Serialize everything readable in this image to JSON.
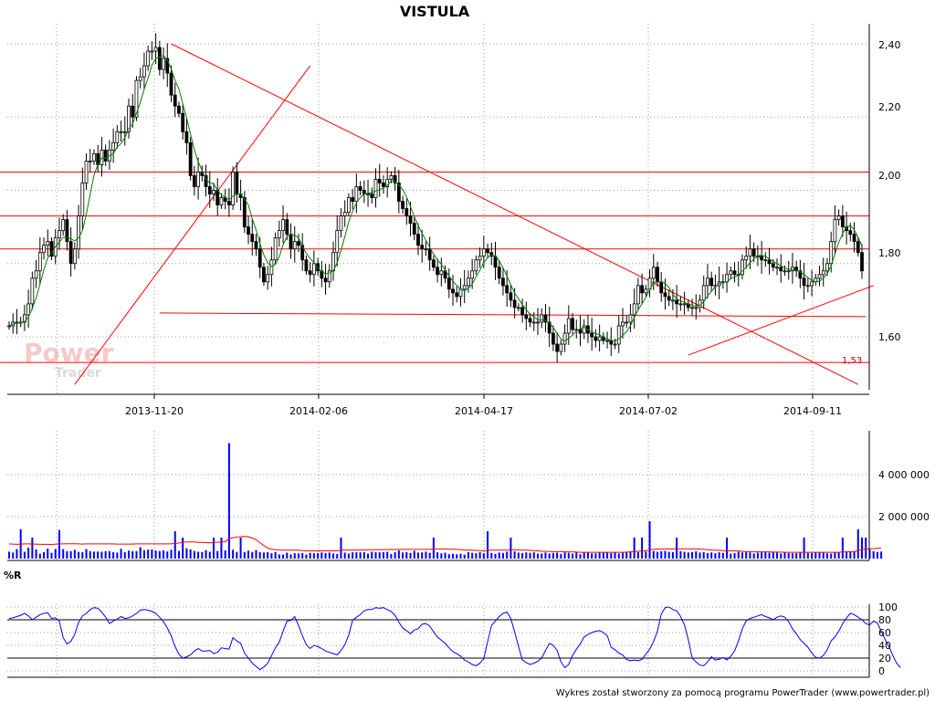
{
  "chart_data": [
    {
      "type": "candlestick",
      "title": "VISTULA",
      "x_ticks": [
        "2013-11-20",
        "2014-02-06",
        "2014-04-17",
        "2014-07-02",
        "2014-09-11"
      ],
      "y_ticks": [
        "1,60",
        "1,80",
        "2,00",
        "2,20",
        "2,40"
      ],
      "ylim": [
        1.46,
        2.46
      ],
      "grid": true,
      "close": [
        1.63,
        1.64,
        1.64,
        1.64,
        1.66,
        1.69,
        1.76,
        1.78,
        1.83,
        1.85,
        1.86,
        1.82,
        1.87,
        1.89,
        1.92,
        1.86,
        1.8,
        1.84,
        1.93,
        2.02,
        2.08,
        2.08,
        2.1,
        2.07,
        2.11,
        2.08,
        2.11,
        2.13,
        2.16,
        2.16,
        2.16,
        2.23,
        2.2,
        2.3,
        2.31,
        2.34,
        2.38,
        2.38,
        2.39,
        2.33,
        2.36,
        2.32,
        2.26,
        2.23,
        2.21,
        2.16,
        2.13,
        2.04,
        2.01,
        2.05,
        2.04,
        2.01,
        1.99,
        2.0,
        1.96,
        1.98,
        1.97,
        1.96,
        2.05,
        1.99,
        1.98,
        1.9,
        1.88,
        1.86,
        1.84,
        1.79,
        1.75,
        1.77,
        1.81,
        1.87,
        1.89,
        1.92,
        1.88,
        1.84,
        1.86,
        1.85,
        1.81,
        1.78,
        1.77,
        1.8,
        1.78,
        1.76,
        1.75,
        1.78,
        1.83,
        1.89,
        1.93,
        1.94,
        1.98,
        1.97,
        2.01,
        2.0,
        1.99,
        1.99,
        1.98,
        2.03,
        2.02,
        2.01,
        2.03,
        2.04,
        2.02,
        1.97,
        1.95,
        1.93,
        1.91,
        1.88,
        1.85,
        1.84,
        1.84,
        1.81,
        1.79,
        1.77,
        1.78,
        1.76,
        1.73,
        1.72,
        1.71,
        1.73,
        1.74,
        1.76,
        1.78,
        1.81,
        1.82,
        1.84,
        1.83,
        1.82,
        1.79,
        1.76,
        1.74,
        1.72,
        1.7,
        1.68,
        1.68,
        1.66,
        1.65,
        1.64,
        1.64,
        1.64,
        1.66,
        1.64,
        1.61,
        1.58,
        1.56,
        1.58,
        1.61,
        1.65,
        1.62,
        1.62,
        1.61,
        1.63,
        1.61,
        1.6,
        1.59,
        1.6,
        1.59,
        1.59,
        1.58,
        1.58,
        1.63,
        1.64,
        1.64,
        1.66,
        1.69,
        1.74,
        1.72,
        1.73,
        1.76,
        1.79,
        1.75,
        1.72,
        1.71,
        1.7,
        1.7,
        1.69,
        1.69,
        1.69,
        1.68,
        1.68,
        1.68,
        1.7,
        1.74,
        1.76,
        1.74,
        1.74,
        1.75,
        1.75,
        1.77,
        1.78,
        1.77,
        1.77,
        1.81,
        1.82,
        1.84,
        1.82,
        1.82,
        1.81,
        1.81,
        1.8,
        1.79,
        1.79,
        1.78,
        1.78,
        1.78,
        1.79,
        1.78,
        1.76,
        1.74,
        1.74,
        1.75,
        1.76,
        1.77,
        1.78,
        1.8,
        1.86,
        1.92,
        1.93,
        1.9,
        1.89,
        1.88,
        1.86,
        1.83,
        1.78
      ]
    },
    {
      "type": "bar",
      "title": "",
      "series_name": "Volume",
      "y_ticks": [
        "2 000 000",
        "4 000 000"
      ],
      "ylim": [
        0,
        5800000
      ],
      "values": [
        330000,
        289000,
        451000,
        1400000,
        326000,
        520000,
        1000000,
        441000,
        230000,
        312000,
        475000,
        275000,
        458000,
        1360000,
        452000,
        354000,
        353000,
        421000,
        323000,
        302000,
        454000,
        354000,
        333000,
        336000,
        325000,
        357000,
        351000,
        303000,
        286000,
        466000,
        303000,
        380000,
        352000,
        353000,
        540000,
        398000,
        427000,
        439000,
        383000,
        358000,
        389000,
        337000,
        420000,
        1300000,
        364000,
        1000000,
        488000,
        439000,
        362000,
        325000,
        316000,
        405000,
        325000,
        1000000,
        358000,
        1000000,
        386000,
        5500000,
        423000,
        316000,
        1000000,
        315000,
        378000,
        313000,
        409000,
        311000,
        291000,
        307000,
        256000,
        314000,
        198000,
        194000,
        283000,
        198000,
        256000,
        243000,
        269000,
        195000,
        275000,
        254000,
        262000,
        293000,
        263000,
        289000,
        242000,
        219000,
        1000000,
        287000,
        237000,
        300000,
        301000,
        298000,
        303000,
        234000,
        329000,
        304000,
        299000,
        307000,
        323000,
        219000,
        302000,
        389000,
        294000,
        313000,
        272000,
        370000,
        287000,
        297000,
        331000,
        276000,
        1000000,
        300000,
        250000,
        280000,
        212000,
        229000,
        207000,
        229000,
        187000,
        315000,
        274000,
        256000,
        306000,
        257000,
        1300000,
        273000,
        227000,
        289000,
        269000,
        330000,
        1000000,
        344000,
        286000,
        261000,
        295000,
        277000,
        300000,
        237000,
        247000,
        290000,
        243000,
        271000,
        283000,
        223000,
        294000,
        279000,
        237000,
        325000,
        206000,
        317000,
        323000,
        246000,
        248000,
        278000,
        282000,
        312000,
        266000,
        317000,
        243000,
        305000,
        318000,
        350000,
        1000000,
        311000,
        1000000,
        339000,
        1780000,
        361000,
        322000,
        355000,
        367000,
        324000,
        305000,
        1000000,
        353000,
        324000,
        293000,
        314000,
        345000,
        288000,
        314000,
        259000,
        292000,
        258000,
        299000,
        275000,
        1000000,
        234000,
        263000,
        324000,
        297000,
        301000,
        292000,
        242000,
        285000,
        298000,
        304000,
        284000,
        307000,
        284000,
        242000,
        288000,
        266000,
        257000,
        257000,
        286000,
        1000000,
        273000,
        267000,
        290000,
        312000,
        296000,
        251000,
        236000,
        285000,
        305000,
        1000000,
        332000,
        351000,
        339000,
        1400000,
        1000000,
        1000000,
        427000,
        357000,
        317000,
        334000
      ],
      "moving_average": [
        700000,
        690000,
        680000,
        690000,
        700000,
        700000,
        690000,
        690000,
        680000,
        680000,
        680000,
        670000,
        690000,
        700000,
        700000,
        710000,
        710000,
        710000,
        700000,
        690000,
        700000,
        700000,
        700000,
        700000,
        700000,
        700000,
        700000,
        700000,
        690000,
        690000,
        690000,
        690000,
        690000,
        700000,
        700000,
        700000,
        700000,
        700000,
        700000,
        700000,
        700000,
        700000,
        700000,
        730000,
        740000,
        780000,
        790000,
        790000,
        790000,
        770000,
        770000,
        760000,
        750000,
        770000,
        780000,
        800000,
        800000,
        960000,
        990000,
        1030000,
        1040000,
        1060000,
        1040000,
        980000,
        890000,
        760000,
        620000,
        500000,
        450000,
        420000,
        410000,
        400000,
        400000,
        400000,
        400000,
        400000,
        380000,
        370000,
        370000,
        370000,
        370000,
        370000,
        370000,
        370000,
        370000,
        370000,
        400000,
        410000,
        410000,
        410000,
        410000,
        410000,
        410000,
        420000,
        420000,
        420000,
        420000,
        430000,
        430000,
        430000,
        430000,
        440000,
        440000,
        440000,
        440000,
        440000,
        440000,
        440000,
        440000,
        440000,
        460000,
        460000,
        460000,
        460000,
        450000,
        450000,
        440000,
        430000,
        410000,
        410000,
        400000,
        390000,
        380000,
        370000,
        400000,
        400000,
        400000,
        400000,
        400000,
        400000,
        420000,
        420000,
        410000,
        400000,
        400000,
        390000,
        380000,
        370000,
        350000,
        350000,
        340000,
        330000,
        330000,
        330000,
        320000,
        320000,
        320000,
        310000,
        300000,
        300000,
        300000,
        300000,
        300000,
        300000,
        300000,
        300000,
        300000,
        300000,
        300000,
        300000,
        310000,
        320000,
        340000,
        350000,
        370000,
        380000,
        430000,
        440000,
        450000,
        450000,
        460000,
        460000,
        460000,
        470000,
        470000,
        470000,
        470000,
        460000,
        460000,
        450000,
        440000,
        420000,
        410000,
        400000,
        390000,
        380000,
        370000,
        370000,
        370000,
        360000,
        350000,
        330000,
        330000,
        320000,
        320000,
        320000,
        320000,
        320000,
        310000,
        310000,
        310000,
        300000,
        300000,
        300000,
        300000,
        300000,
        300000,
        300000,
        300000,
        300000,
        300000,
        300000,
        300000,
        300000,
        300000,
        300000,
        320000,
        320000,
        330000,
        340000,
        380000,
        420000,
        450000,
        470000,
        480000,
        490000,
        500000
      ]
    },
    {
      "type": "line",
      "title": "%R",
      "y_ticks": [
        "0",
        "20",
        "40",
        "60",
        "80",
        "100"
      ],
      "ylim": [
        -5,
        100
      ],
      "reference_lines": [
        20,
        80
      ],
      "values": [
        82,
        83,
        85,
        87,
        90,
        86,
        80,
        84,
        88,
        90,
        91,
        82,
        83,
        78,
        52,
        42,
        46,
        57,
        76,
        86,
        90,
        96,
        99,
        98,
        92,
        84,
        74,
        78,
        81,
        85,
        82,
        83,
        86,
        90,
        95,
        96,
        95,
        93,
        90,
        84,
        77,
        67,
        55,
        38,
        26,
        20,
        22,
        25,
        31,
        35,
        31,
        31,
        32,
        27,
        29,
        36,
        35,
        34,
        52,
        47,
        43,
        28,
        20,
        12,
        7,
        2,
        6,
        12,
        24,
        36,
        45,
        62,
        78,
        79,
        85,
        71,
        55,
        41,
        35,
        40,
        38,
        35,
        31,
        29,
        27,
        25,
        32,
        41,
        56,
        79,
        84,
        88,
        94,
        96,
        96,
        99,
        98,
        99,
        96,
        93,
        87,
        76,
        67,
        63,
        58,
        64,
        66,
        73,
        74,
        70,
        61,
        53,
        48,
        43,
        36,
        30,
        27,
        23,
        17,
        14,
        10,
        8,
        12,
        19,
        46,
        71,
        78,
        85,
        90,
        92,
        82,
        61,
        38,
        17,
        13,
        10,
        12,
        15,
        20,
        32,
        43,
        40,
        32,
        14,
        5,
        10,
        24,
        34,
        42,
        53,
        57,
        60,
        62,
        63,
        60,
        55,
        37,
        33,
        28,
        25,
        18,
        16,
        17,
        16,
        18,
        26,
        34,
        46,
        62,
        89,
        99,
        100,
        96,
        94,
        85,
        72,
        49,
        20,
        14,
        9,
        8,
        14,
        22,
        17,
        18,
        21,
        17,
        23,
        31,
        47,
        66,
        78,
        82,
        84,
        86,
        88,
        85,
        83,
        80,
        84,
        86,
        84,
        77,
        66,
        58,
        49,
        43,
        37,
        28,
        21,
        20,
        24,
        33,
        47,
        53,
        62,
        74,
        83,
        90,
        88,
        84,
        80,
        74,
        72,
        78,
        75,
        62,
        49,
        38,
        24,
        12,
        5
      ]
    }
  ],
  "overlays": {
    "ma_color": "#008000",
    "volume_color": "#0000ff",
    "volume_ma_color": "#ff0000",
    "wr_color": "#0000ff",
    "line_color": "#ff0000",
    "support_label": "1,53",
    "horizontal_levels": [
      2.05,
      1.93,
      1.84,
      1.53
    ],
    "trendlines": [
      {
        "from": [
          42,
          2.4
        ],
        "to": [
          220,
          1.47
        ]
      },
      {
        "from": [
          17,
          1.47
        ],
        "to": [
          78,
          2.34
        ]
      },
      {
        "from": [
          39,
          1.665
        ],
        "to": [
          222,
          1.655
        ]
      },
      {
        "from": [
          176,
          1.55
        ],
        "to": [
          224,
          1.74
        ]
      }
    ]
  },
  "watermark": {
    "line1": "Power",
    "line2": "Trader"
  },
  "footer": "Wykres został stworzony za pomocą programu PowerTrader (www.powertrader.pl)"
}
